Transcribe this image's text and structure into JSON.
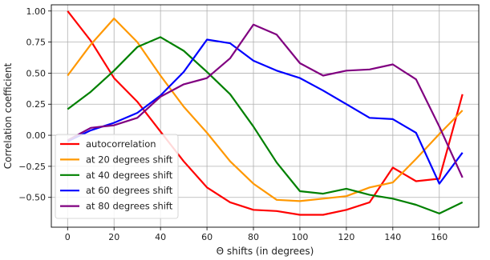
{
  "chart_data": {
    "type": "line",
    "title": "",
    "xlabel": "Θ shifts (in degrees)",
    "ylabel": "Correlation coefficient",
    "xlim": [
      -7,
      177
    ],
    "ylim": [
      -0.74,
      1.05
    ],
    "xticks": [
      0,
      20,
      40,
      60,
      80,
      100,
      120,
      140,
      160
    ],
    "yticks": [
      1.0,
      0.75,
      0.5,
      0.25,
      0.0,
      -0.25,
      -0.5
    ],
    "ytick_labels": [
      "1.00",
      "0.75",
      "0.50",
      "0.25",
      "0.00",
      "−0.25",
      "−0.50"
    ],
    "grid": true,
    "legend_position": "lower-left",
    "x": [
      0,
      10,
      20,
      30,
      40,
      50,
      60,
      70,
      80,
      90,
      100,
      110,
      120,
      130,
      140,
      150,
      160,
      170
    ],
    "series": [
      {
        "name": "autocorrelation",
        "color": "#ff0000",
        "values": [
          1.0,
          0.76,
          0.46,
          0.27,
          0.03,
          -0.21,
          -0.42,
          -0.54,
          -0.6,
          -0.61,
          -0.64,
          -0.64,
          -0.6,
          -0.54,
          -0.26,
          -0.37,
          -0.35,
          0.33
        ]
      },
      {
        "name": "at 20 degrees shift",
        "color": "#ff9800",
        "values": [
          0.48,
          0.73,
          0.94,
          0.75,
          0.48,
          0.23,
          0.02,
          -0.21,
          -0.39,
          -0.52,
          -0.53,
          -0.51,
          -0.49,
          -0.42,
          -0.38,
          -0.19,
          0.01,
          0.2
        ]
      },
      {
        "name": "at 40 degrees shift",
        "color": "#008000",
        "values": [
          0.21,
          0.35,
          0.52,
          0.71,
          0.79,
          0.68,
          0.51,
          0.33,
          0.07,
          -0.22,
          -0.45,
          -0.47,
          -0.43,
          -0.48,
          -0.51,
          -0.56,
          -0.63,
          -0.54
        ]
      },
      {
        "name": "at 60 degrees shift",
        "color": "#0000ff",
        "values": [
          -0.05,
          0.04,
          0.1,
          0.18,
          0.32,
          0.51,
          0.77,
          0.74,
          0.6,
          0.52,
          0.46,
          0.36,
          0.25,
          0.14,
          0.13,
          0.02,
          -0.39,
          -0.14
        ]
      },
      {
        "name": "at 80 degrees shift",
        "color": "#800080",
        "values": [
          -0.04,
          0.06,
          0.08,
          0.14,
          0.31,
          0.41,
          0.46,
          0.62,
          0.89,
          0.81,
          0.58,
          0.48,
          0.52,
          0.53,
          0.57,
          0.45,
          0.07,
          -0.34
        ]
      }
    ]
  }
}
